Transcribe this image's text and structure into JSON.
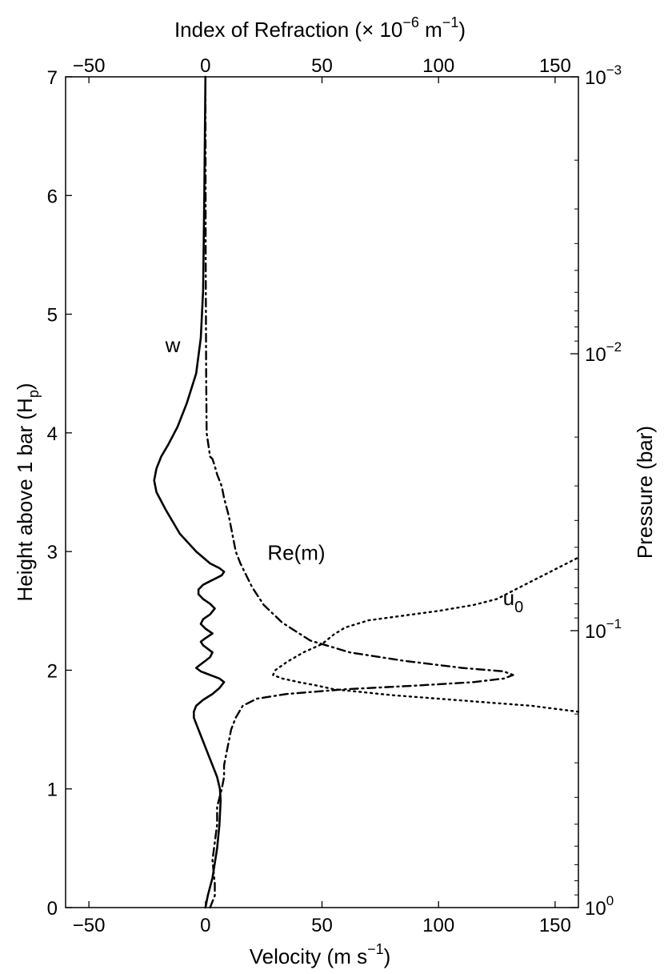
{
  "chart_data": {
    "type": "line",
    "axes": {
      "bottom": {
        "label": "Velocity (m s",
        "label_sup": "−1",
        "label_tail": ")",
        "range": [
          -60,
          160
        ],
        "ticks": [
          -50,
          0,
          50,
          100,
          150
        ],
        "tick_labels": [
          "−50",
          "0",
          "50",
          "100",
          "150"
        ]
      },
      "top": {
        "label": "Index of Refraction (× 10",
        "label_sup": "−6",
        "label_mid": " m",
        "label_sup2": "−1",
        "label_tail": ")",
        "range": [
          -60,
          160
        ],
        "ticks": [
          -50,
          0,
          50,
          100,
          150
        ],
        "tick_labels": [
          "−50",
          "0",
          "50",
          "100",
          "150"
        ]
      },
      "left": {
        "label": "Height above 1 bar (H",
        "label_sub": "p",
        "label_tail": ")",
        "range": [
          0,
          7
        ],
        "ticks": [
          0,
          1,
          2,
          3,
          4,
          5,
          6,
          7
        ],
        "tick_labels": [
          "0",
          "1",
          "2",
          "3",
          "4",
          "5",
          "6",
          "7"
        ]
      },
      "right": {
        "label": "Pressure (bar)",
        "scale": "log",
        "range": [
          0.001,
          1
        ],
        "ticks": [
          {
            "base": "10",
            "exp": "0"
          },
          {
            "base": "10",
            "exp": "−1"
          },
          {
            "base": "10",
            "exp": "−2"
          },
          {
            "base": "10",
            "exp": "−3"
          }
        ]
      }
    },
    "series": [
      {
        "name": "w",
        "style": "solid",
        "x": [
          0,
          1,
          3,
          5,
          6,
          6.5,
          6.2,
          5,
          3,
          1,
          -1,
          -3,
          -4,
          -5,
          -5,
          -4,
          -1,
          3,
          6,
          8,
          6,
          2,
          -2,
          -4,
          -2,
          0,
          2,
          3,
          1,
          -1,
          -2,
          0,
          3,
          0,
          -2,
          -1,
          2,
          4,
          2,
          -1,
          -3,
          -3,
          -1,
          2,
          5,
          7,
          8,
          6,
          2,
          -4,
          -11,
          -17,
          -21,
          -22,
          -21,
          -19,
          -16,
          -12,
          -8,
          -4,
          -2,
          -1,
          -0.5,
          0
        ],
        "y": [
          0,
          0.1,
          0.25,
          0.5,
          0.7,
          0.9,
          1.0,
          1.1,
          1.2,
          1.3,
          1.4,
          1.5,
          1.55,
          1.6,
          1.65,
          1.7,
          1.75,
          1.8,
          1.85,
          1.9,
          1.93,
          1.96,
          1.99,
          2.02,
          2.05,
          2.08,
          2.11,
          2.15,
          2.18,
          2.21,
          2.24,
          2.27,
          2.31,
          2.35,
          2.39,
          2.43,
          2.47,
          2.52,
          2.56,
          2.6,
          2.64,
          2.68,
          2.72,
          2.75,
          2.78,
          2.8,
          2.83,
          2.86,
          2.9,
          3.0,
          3.15,
          3.35,
          3.5,
          3.6,
          3.7,
          3.8,
          3.9,
          4.05,
          4.25,
          4.5,
          4.8,
          5.2,
          6.0,
          7.0
        ]
      },
      {
        "name": "Re(m)",
        "style": "dashdot",
        "x": [
          2,
          4,
          4,
          3,
          4,
          5,
          5,
          7,
          8,
          8,
          9,
          10,
          11,
          13,
          16,
          22,
          35,
          60,
          90,
          115,
          128,
          132,
          128,
          110,
          85,
          62,
          45,
          33,
          25,
          20,
          15,
          13,
          12,
          10,
          8,
          7,
          5,
          4,
          3,
          2,
          0.5,
          0.3,
          0.2,
          0.1,
          0.05,
          0
        ],
        "y": [
          0,
          0.1,
          0.2,
          0.4,
          0.55,
          0.7,
          0.85,
          1.0,
          1.1,
          1.2,
          1.3,
          1.4,
          1.5,
          1.6,
          1.7,
          1.76,
          1.8,
          1.84,
          1.87,
          1.9,
          1.93,
          1.96,
          1.99,
          2.02,
          2.08,
          2.15,
          2.25,
          2.4,
          2.55,
          2.7,
          2.9,
          3.0,
          3.1,
          3.3,
          3.45,
          3.55,
          3.65,
          3.72,
          3.78,
          3.8,
          4.0,
          4.5,
          5.0,
          5.5,
          6.0,
          7.0
        ]
      },
      {
        "name": "u",
        "name_sub": "0",
        "style": "dotted",
        "x": [
          160,
          140,
          120,
          100,
          80,
          65,
          55,
          48,
          40,
          33,
          29,
          30,
          35,
          42,
          50,
          55,
          60,
          70,
          85,
          100,
          115,
          125,
          130,
          140,
          150,
          160
        ],
        "y": [
          1.65,
          1.7,
          1.73,
          1.76,
          1.79,
          1.82,
          1.84,
          1.87,
          1.9,
          1.93,
          1.96,
          2.0,
          2.07,
          2.15,
          2.22,
          2.3,
          2.36,
          2.42,
          2.46,
          2.5,
          2.55,
          2.6,
          2.65,
          2.75,
          2.85,
          2.95
        ]
      }
    ],
    "annotations": [
      {
        "text": "w",
        "x": -14,
        "y": 4.68
      },
      {
        "text": "Re(m)",
        "x": 39,
        "y": 2.93
      },
      {
        "text": "u",
        "sub": "0",
        "x": 132,
        "y": 2.55
      }
    ]
  }
}
